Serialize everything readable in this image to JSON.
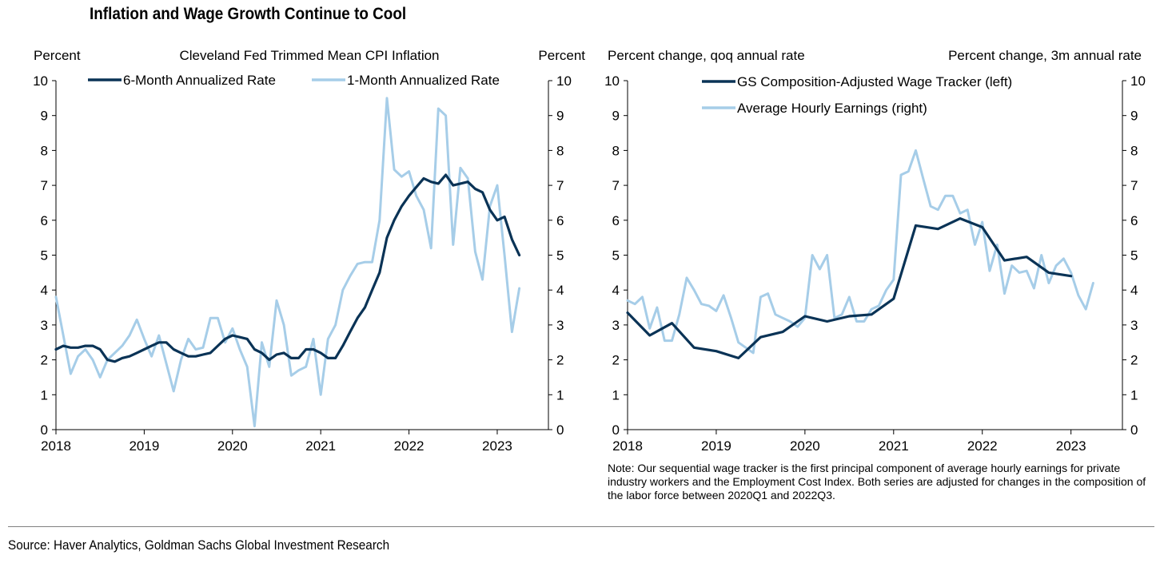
{
  "title": "Inflation and Wage Growth Continue to Cool",
  "source": "Source: Haver Analytics, Goldman Sachs Global Investment Research",
  "colors": {
    "dark": "#0a3356",
    "light": "#a6cde8",
    "axis": "#000000"
  },
  "chart_data": [
    {
      "type": "line",
      "title": "Cleveland Fed Trimmed Mean CPI Inflation",
      "ylabel_left": "Percent",
      "ylabel_right": "Percent",
      "ylim": [
        0,
        10
      ],
      "yticks": [
        "0",
        "1",
        "2",
        "3",
        "4",
        "5",
        "6",
        "7",
        "8",
        "9",
        "10"
      ],
      "xlim": [
        2018,
        2023.58
      ],
      "xticks": [
        "2018",
        "2019",
        "2020",
        "2021",
        "2022",
        "2023"
      ],
      "legend_placement": "top",
      "series": [
        {
          "name": "6-Month Annualized Rate",
          "color": "dark",
          "x": [
            2018.0,
            2018.083,
            2018.167,
            2018.25,
            2018.333,
            2018.417,
            2018.5,
            2018.583,
            2018.667,
            2018.75,
            2018.833,
            2018.917,
            2019.0,
            2019.083,
            2019.167,
            2019.25,
            2019.333,
            2019.417,
            2019.5,
            2019.583,
            2019.667,
            2019.75,
            2019.833,
            2019.917,
            2020.0,
            2020.083,
            2020.167,
            2020.25,
            2020.333,
            2020.417,
            2020.5,
            2020.583,
            2020.667,
            2020.75,
            2020.833,
            2020.917,
            2021.0,
            2021.083,
            2021.167,
            2021.25,
            2021.333,
            2021.417,
            2021.5,
            2021.583,
            2021.667,
            2021.75,
            2021.833,
            2021.917,
            2022.0,
            2022.083,
            2022.167,
            2022.25,
            2022.333,
            2022.417,
            2022.5,
            2022.583,
            2022.667,
            2022.75,
            2022.833,
            2022.917,
            2023.0,
            2023.083,
            2023.167,
            2023.25
          ],
          "y": [
            2.3,
            2.4,
            2.35,
            2.35,
            2.4,
            2.4,
            2.3,
            2.0,
            1.95,
            2.05,
            2.1,
            2.2,
            2.3,
            2.4,
            2.5,
            2.5,
            2.3,
            2.2,
            2.1,
            2.1,
            2.15,
            2.2,
            2.4,
            2.6,
            2.7,
            2.65,
            2.6,
            2.3,
            2.2,
            2.0,
            2.15,
            2.2,
            2.05,
            2.05,
            2.3,
            2.3,
            2.2,
            2.05,
            2.05,
            2.4,
            2.8,
            3.2,
            3.5,
            4.0,
            4.5,
            5.5,
            6.0,
            6.4,
            6.7,
            6.95,
            7.2,
            7.1,
            7.05,
            7.3,
            7.0,
            7.05,
            7.1,
            6.9,
            6.8,
            6.3,
            6.0,
            6.1,
            5.45,
            5.0
          ]
        },
        {
          "name": "1-Month Annualized Rate",
          "color": "light",
          "x": [
            2018.0,
            2018.083,
            2018.167,
            2018.25,
            2018.333,
            2018.417,
            2018.5,
            2018.583,
            2018.667,
            2018.75,
            2018.833,
            2018.917,
            2019.0,
            2019.083,
            2019.167,
            2019.25,
            2019.333,
            2019.417,
            2019.5,
            2019.583,
            2019.667,
            2019.75,
            2019.833,
            2019.917,
            2020.0,
            2020.083,
            2020.167,
            2020.25,
            2020.333,
            2020.417,
            2020.5,
            2020.583,
            2020.667,
            2020.75,
            2020.833,
            2020.917,
            2021.0,
            2021.083,
            2021.167,
            2021.25,
            2021.333,
            2021.417,
            2021.5,
            2021.583,
            2021.667,
            2021.75,
            2021.833,
            2021.917,
            2022.0,
            2022.083,
            2022.167,
            2022.25,
            2022.333,
            2022.417,
            2022.5,
            2022.583,
            2022.667,
            2022.75,
            2022.833,
            2022.917,
            2023.0,
            2023.083,
            2023.167,
            2023.25
          ],
          "y": [
            3.8,
            2.7,
            1.6,
            2.1,
            2.3,
            2.0,
            1.5,
            2.0,
            2.2,
            2.4,
            2.7,
            3.15,
            2.6,
            2.1,
            2.7,
            1.9,
            1.1,
            2.0,
            2.6,
            2.3,
            2.35,
            3.2,
            3.2,
            2.5,
            2.9,
            2.3,
            1.8,
            0.1,
            2.5,
            1.8,
            3.7,
            3.0,
            1.55,
            1.7,
            1.8,
            2.6,
            1.0,
            2.6,
            3.0,
            4.0,
            4.4,
            4.75,
            4.8,
            4.8,
            6.0,
            9.5,
            7.45,
            7.25,
            7.4,
            6.7,
            6.3,
            5.2,
            9.2,
            9.0,
            5.3,
            7.5,
            7.2,
            5.1,
            4.3,
            6.4,
            7.0,
            5.0,
            2.8,
            4.05
          ]
        }
      ]
    },
    {
      "type": "line",
      "ylabel_left": "Percent change, qoq annual rate",
      "ylabel_right": "Percent change, 3m annual rate",
      "ylim": [
        0,
        10
      ],
      "yticks": [
        "0",
        "1",
        "2",
        "3",
        "4",
        "5",
        "6",
        "7",
        "8",
        "9",
        "10"
      ],
      "xlim": [
        2018,
        2023.58
      ],
      "xticks": [
        "2018",
        "2019",
        "2020",
        "2021",
        "2022",
        "2023"
      ],
      "legend_placement": "top",
      "series": [
        {
          "name": "GS Composition-Adjusted Wage Tracker (left)",
          "color": "dark",
          "x": [
            2018.0,
            2018.25,
            2018.5,
            2018.75,
            2019.0,
            2019.25,
            2019.5,
            2019.75,
            2020.0,
            2020.25,
            2020.5,
            2020.75,
            2021.0,
            2021.25,
            2021.5,
            2021.75,
            2022.0,
            2022.25,
            2022.5,
            2022.75,
            2023.0
          ],
          "y": [
            3.35,
            2.7,
            3.05,
            2.35,
            2.25,
            2.05,
            2.65,
            2.8,
            3.25,
            3.1,
            3.25,
            3.3,
            3.75,
            5.85,
            5.75,
            6.05,
            5.8,
            4.85,
            4.95,
            4.5,
            4.4
          ]
        },
        {
          "name": "Average Hourly Earnings (right)",
          "color": "light",
          "x": [
            2018.0,
            2018.083,
            2018.167,
            2018.25,
            2018.333,
            2018.417,
            2018.5,
            2018.583,
            2018.667,
            2018.75,
            2018.833,
            2018.917,
            2019.0,
            2019.083,
            2019.167,
            2019.25,
            2019.333,
            2019.417,
            2019.5,
            2019.583,
            2019.667,
            2019.75,
            2019.833,
            2019.917,
            2020.0,
            2020.083,
            2020.167,
            2020.25,
            2020.333,
            2020.417,
            2020.5,
            2020.583,
            2020.667,
            2020.75,
            2020.833,
            2020.917,
            2021.0,
            2021.083,
            2021.167,
            2021.25,
            2021.333,
            2021.417,
            2021.5,
            2021.583,
            2021.667,
            2021.75,
            2021.833,
            2021.917,
            2022.0,
            2022.083,
            2022.167,
            2022.25,
            2022.333,
            2022.417,
            2022.5,
            2022.583,
            2022.667,
            2022.75,
            2022.833,
            2022.917,
            2023.0,
            2023.083,
            2023.167,
            2023.25
          ],
          "y": [
            3.7,
            3.6,
            3.8,
            2.9,
            3.5,
            2.55,
            2.55,
            3.3,
            4.35,
            4.0,
            3.6,
            3.55,
            3.4,
            3.85,
            3.2,
            2.5,
            2.35,
            2.2,
            3.8,
            3.9,
            3.3,
            3.2,
            3.1,
            2.95,
            3.2,
            5.0,
            4.6,
            5.0,
            3.2,
            3.3,
            3.8,
            3.1,
            3.1,
            3.45,
            3.55,
            4.0,
            4.3,
            7.3,
            7.4,
            8.0,
            7.2,
            6.4,
            6.3,
            6.7,
            6.7,
            6.2,
            6.3,
            5.3,
            5.95,
            4.55,
            5.3,
            3.9,
            4.7,
            4.5,
            4.55,
            4.05,
            5.0,
            4.2,
            4.7,
            4.9,
            4.5,
            3.85,
            3.45,
            4.2
          ]
        }
      ]
    }
  ],
  "note": "Note: Our sequential wage tracker is the first principal component of average hourly earnings for private industry workers and the Employment Cost Index. Both series are adjusted for changes in the composition of the labor force between 2020Q1 and 2022Q3."
}
